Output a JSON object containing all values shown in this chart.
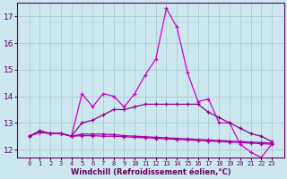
{
  "xlabel": "Windchill (Refroidissement éolien,°C)",
  "background_color": "#cce8ee",
  "grid_color": "#aaccd4",
  "x_hours": [
    0,
    1,
    2,
    3,
    4,
    5,
    6,
    7,
    8,
    9,
    10,
    11,
    12,
    13,
    14,
    15,
    16,
    17,
    18,
    19,
    20,
    21,
    22,
    23
  ],
  "series1": [
    12.5,
    12.7,
    12.6,
    12.6,
    12.5,
    14.1,
    13.6,
    14.1,
    14.0,
    13.6,
    14.1,
    14.8,
    15.4,
    17.3,
    16.6,
    14.9,
    13.8,
    13.9,
    13.0,
    13.0,
    12.2,
    11.9,
    11.7,
    12.2
  ],
  "series2": [
    12.5,
    12.7,
    12.6,
    12.6,
    12.5,
    13.0,
    13.1,
    13.3,
    13.5,
    13.5,
    13.6,
    13.7,
    13.7,
    13.7,
    13.7,
    13.7,
    13.7,
    13.4,
    13.2,
    13.0,
    12.8,
    12.6,
    12.5,
    12.3
  ],
  "series3": [
    12.5,
    12.65,
    12.6,
    12.6,
    12.5,
    12.58,
    12.58,
    12.58,
    12.56,
    12.52,
    12.5,
    12.48,
    12.46,
    12.44,
    12.42,
    12.4,
    12.38,
    12.36,
    12.34,
    12.32,
    12.3,
    12.28,
    12.26,
    12.24
  ],
  "series4": [
    12.5,
    12.65,
    12.6,
    12.6,
    12.5,
    12.52,
    12.52,
    12.5,
    12.5,
    12.48,
    12.46,
    12.44,
    12.42,
    12.4,
    12.38,
    12.36,
    12.34,
    12.32,
    12.3,
    12.28,
    12.26,
    12.24,
    12.22,
    12.2
  ],
  "ylim": [
    11.7,
    17.5
  ],
  "yticks": [
    12,
    13,
    14,
    15,
    16,
    17
  ],
  "xtick_labels": [
    "0",
    "1",
    "2",
    "3",
    "4",
    "5",
    "6",
    "7",
    "8",
    "9",
    "10",
    "11",
    "12",
    "13",
    "14",
    "15",
    "16",
    "17",
    "18",
    "19",
    "20",
    "21",
    "22",
    "23"
  ],
  "colors": [
    "#cc00cc",
    "#880088",
    "#aa00aa",
    "#aa00aa"
  ],
  "marker": "+",
  "markersize": 3.5,
  "linewidth": 0.9,
  "tick_color": "#660066",
  "label_fontsize": 5.0,
  "xlabel_fontsize": 6.0,
  "ylabel_fontsize": 6.5
}
